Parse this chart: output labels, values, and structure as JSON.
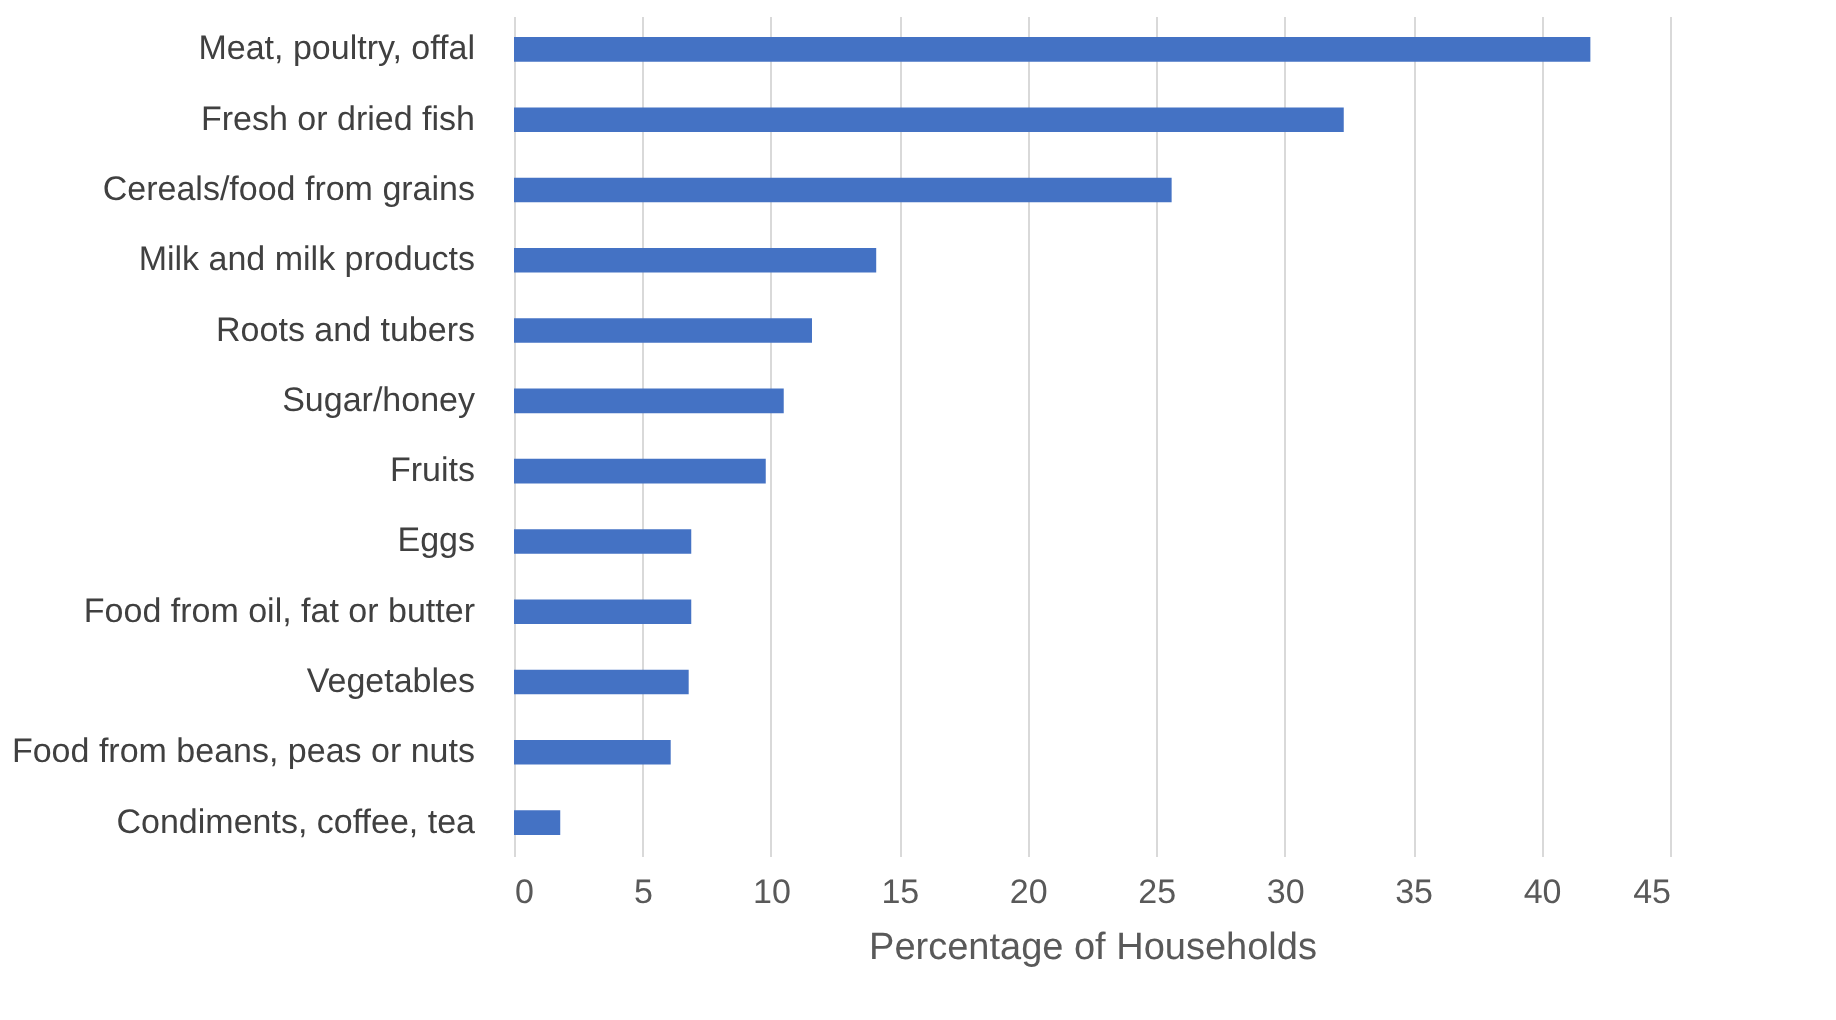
{
  "chart_data": {
    "type": "bar",
    "orientation": "horizontal",
    "xlabel": "Percentage of Households",
    "categories": [
      "Meat, poultry, offal",
      "Fresh or dried fish",
      "Cereals/food from grains",
      "Milk and milk products",
      "Roots and tubers",
      "Sugar/honey",
      "Fruits",
      "Eggs",
      "Food from oil, fat or butter",
      "Vegetables",
      "Food from beans, peas or nuts",
      "Condiments, coffee, tea"
    ],
    "values": [
      41.9,
      32.3,
      25.6,
      14.1,
      11.6,
      10.5,
      9.8,
      6.9,
      6.9,
      6.8,
      6.1,
      1.8
    ],
    "color": "#4472c4",
    "xlim": [
      0,
      45
    ],
    "xticks": [
      0,
      5,
      10,
      15,
      20,
      25,
      30,
      35,
      40,
      45
    ],
    "grid": "x"
  }
}
